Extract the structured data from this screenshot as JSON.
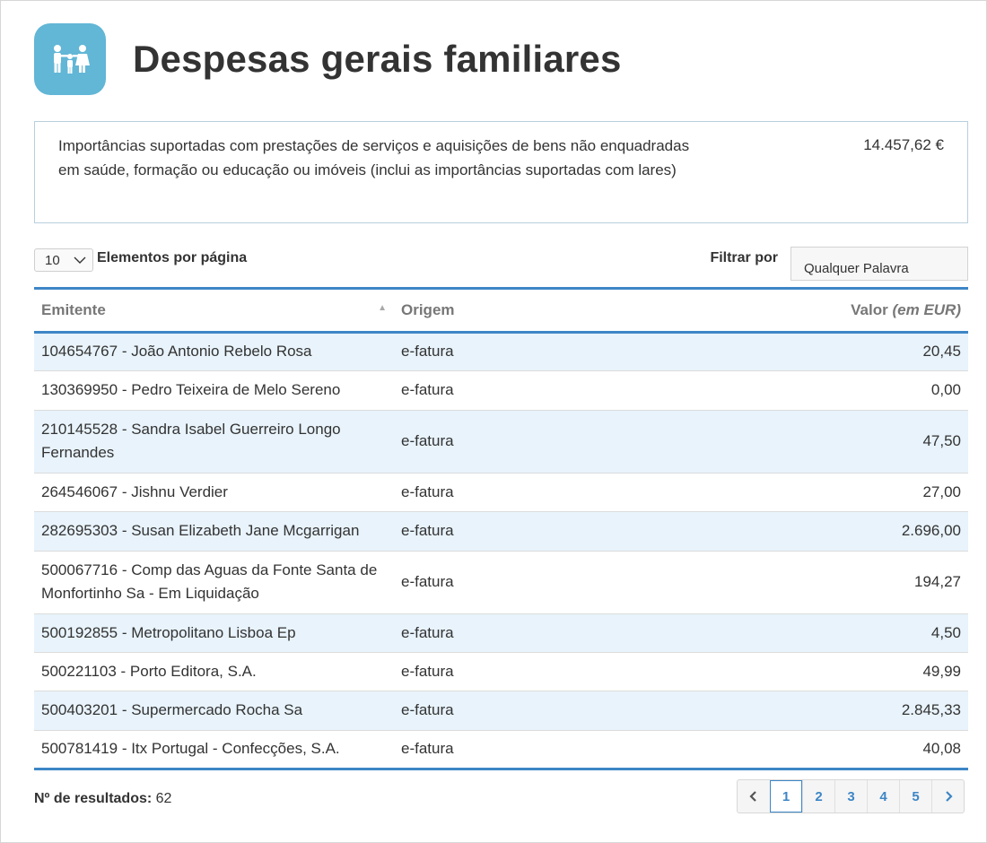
{
  "header": {
    "title": "Despesas gerais familiares",
    "icon": "family-icon",
    "icon_color": "#62b6d6"
  },
  "summary": {
    "description": "Importâncias suportadas com prestações de serviços e aquisições de bens não enquadradas em saúde, formação ou educação ou imóveis (inclui as importâncias suportadas com lares)",
    "total": "14.457,62 €"
  },
  "controls": {
    "page_size_value": "10",
    "page_size_label": "Elementos por página",
    "filter_label": "Filtrar por",
    "filter_placeholder": "Qualquer Palavra"
  },
  "table": {
    "headers": {
      "emitente": "Emitente",
      "origem": "Origem",
      "valor": "Valor",
      "valor_unit": "(em EUR)"
    },
    "rows": [
      {
        "emitente": "104654767 - João Antonio Rebelo Rosa",
        "origem": "e-fatura",
        "valor": "20,45"
      },
      {
        "emitente": "130369950 - Pedro Teixeira de Melo Sereno",
        "origem": "e-fatura",
        "valor": "0,00"
      },
      {
        "emitente": "210145528 - Sandra Isabel Guerreiro Longo Fernandes",
        "origem": "e-fatura",
        "valor": "47,50"
      },
      {
        "emitente": "264546067 - Jishnu Verdier",
        "origem": "e-fatura",
        "valor": "27,00"
      },
      {
        "emitente": "282695303 - Susan Elizabeth Jane Mcgarrigan",
        "origem": "e-fatura",
        "valor": "2.696,00"
      },
      {
        "emitente": "500067716 - Comp das Aguas da Fonte Santa de Monfortinho Sa - Em Liquidação",
        "origem": "e-fatura",
        "valor": "194,27"
      },
      {
        "emitente": "500192855 - Metropolitano Lisboa Ep",
        "origem": "e-fatura",
        "valor": "4,50"
      },
      {
        "emitente": "500221103 - Porto Editora, S.A.",
        "origem": "e-fatura",
        "valor": "49,99"
      },
      {
        "emitente": "500403201 - Supermercado Rocha Sa",
        "origem": "e-fatura",
        "valor": "2.845,33"
      },
      {
        "emitente": "500781419 - Itx Portugal - Confecções, S.A.",
        "origem": "e-fatura",
        "valor": "40,08"
      }
    ]
  },
  "footer": {
    "results_label": "Nº de resultados:",
    "results_count": "62"
  },
  "pagination": {
    "prev_icon": "chevron-left-icon",
    "next_icon": "chevron-right-icon",
    "pages": [
      "1",
      "2",
      "3",
      "4",
      "5"
    ],
    "current": "1"
  },
  "colors": {
    "accent": "#3d86c6",
    "row_stripe": "#e8f3fb"
  }
}
